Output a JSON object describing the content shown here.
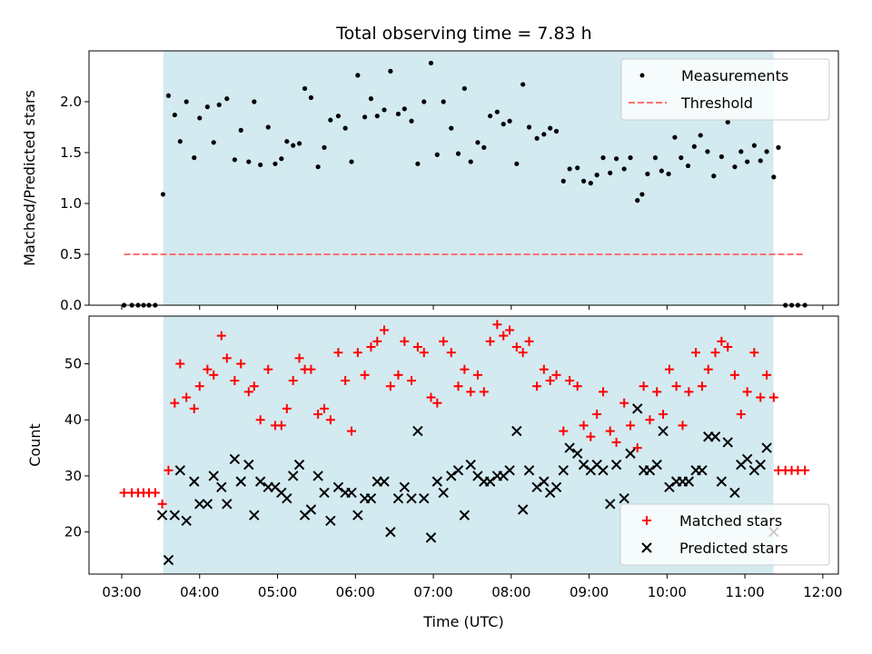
{
  "figure": {
    "title": "Total observing time = 7.83 h",
    "xlabel": "Time (UTC)"
  },
  "chart_data": [
    {
      "type": "scatter",
      "ylabel": "Matched/Predicted stars",
      "xlim": [
        2.58,
        12.2
      ],
      "ylim": [
        0.0,
        2.5
      ],
      "x_tick_labels": [],
      "y_ticks": [
        0.0,
        0.5,
        1.0,
        1.5,
        2.0
      ],
      "y_tick_labels": [
        "0.0",
        "0.5",
        "1.0",
        "1.5",
        "2.0"
      ],
      "observing_window": {
        "start": "03:32",
        "end": "11:22",
        "color": "#d3eaf0"
      },
      "legend": {
        "position": "top-right",
        "entries": [
          "Measurements",
          "Threshold"
        ]
      },
      "series": [
        {
          "name": "Measurements",
          "marker": "dot",
          "color": "#000000",
          "x": [
            3.03,
            3.13,
            3.21,
            3.28,
            3.35,
            3.43,
            3.53,
            3.6,
            3.68,
            3.75,
            3.83,
            3.93,
            4.0,
            4.1,
            4.18,
            4.25,
            4.35,
            4.45,
            4.53,
            4.63,
            4.7,
            4.78,
            4.88,
            4.97,
            5.05,
            5.12,
            5.2,
            5.28,
            5.35,
            5.43,
            5.52,
            5.6,
            5.68,
            5.78,
            5.87,
            5.95,
            6.03,
            6.12,
            6.2,
            6.28,
            6.37,
            6.45,
            6.55,
            6.63,
            6.72,
            6.8,
            6.88,
            6.97,
            7.05,
            7.13,
            7.23,
            7.32,
            7.4,
            7.48,
            7.57,
            7.65,
            7.73,
            7.82,
            7.9,
            7.98,
            8.07,
            8.15,
            8.23,
            8.33,
            8.42,
            8.5,
            8.58,
            8.67,
            8.75,
            8.85,
            8.93,
            9.02,
            9.1,
            9.18,
            9.27,
            9.35,
            9.45,
            9.53,
            9.62,
            9.68,
            9.75,
            9.85,
            9.93,
            10.02,
            10.1,
            10.18,
            10.27,
            10.35,
            10.43,
            10.52,
            10.6,
            10.7,
            10.78,
            10.87,
            10.95,
            11.03,
            11.12,
            11.2,
            11.28,
            11.37,
            11.43,
            11.52,
            11.6,
            11.68,
            11.77
          ],
          "y": [
            0.0,
            0.0,
            0.0,
            0.0,
            0.0,
            0.0,
            1.09,
            2.06,
            1.87,
            1.61,
            2.0,
            1.45,
            1.84,
            1.95,
            1.6,
            1.97,
            2.03,
            1.43,
            1.72,
            1.41,
            2.0,
            1.38,
            1.75,
            1.39,
            1.44,
            1.61,
            1.57,
            1.59,
            2.13,
            2.04,
            1.36,
            1.55,
            1.82,
            1.86,
            1.74,
            1.41,
            2.26,
            1.85,
            2.03,
            1.86,
            1.92,
            2.3,
            1.88,
            1.93,
            1.81,
            1.39,
            2.0,
            2.38,
            1.48,
            2.0,
            1.74,
            1.49,
            2.13,
            1.41,
            1.6,
            1.55,
            1.86,
            1.9,
            1.78,
            1.81,
            1.39,
            2.17,
            1.75,
            1.64,
            1.68,
            1.74,
            1.71,
            1.22,
            1.34,
            1.35,
            1.22,
            1.2,
            1.28,
            1.45,
            1.3,
            1.44,
            1.34,
            1.45,
            1.03,
            1.09,
            1.29,
            1.45,
            1.32,
            1.29,
            1.65,
            1.45,
            1.37,
            1.56,
            1.67,
            1.51,
            1.27,
            1.46,
            1.8,
            1.36,
            1.51,
            1.41,
            1.57,
            1.42,
            1.51,
            1.26,
            1.55,
            0.0,
            0.0,
            0.0,
            0.0
          ]
        },
        {
          "name": "Threshold",
          "marker": "dashed-line",
          "color": "#ff7070",
          "x": [
            3.03,
            11.77
          ],
          "y": [
            0.5,
            0.5
          ]
        }
      ]
    },
    {
      "type": "scatter",
      "ylabel": "Count",
      "xlim": [
        2.58,
        12.2
      ],
      "ylim": [
        12.5,
        58.5
      ],
      "x_ticks": [
        3,
        4,
        5,
        6,
        7,
        8,
        9,
        10,
        11,
        12
      ],
      "x_tick_labels": [
        "03:00",
        "04:00",
        "05:00",
        "06:00",
        "07:00",
        "08:00",
        "09:00",
        "10:00",
        "11:00",
        "12:00"
      ],
      "y_ticks": [
        20,
        30,
        40,
        50
      ],
      "y_tick_labels": [
        "20",
        "30",
        "40",
        "50"
      ],
      "observing_window": {
        "start": "03:32",
        "end": "11:22",
        "color": "#d3eaf0"
      },
      "legend": {
        "position": "bottom-right",
        "entries": [
          "Matched stars",
          "Predicted stars"
        ]
      },
      "series": [
        {
          "name": "Matched stars",
          "marker": "plus",
          "color": "#ff0000",
          "x": [
            3.03,
            3.13,
            3.21,
            3.28,
            3.35,
            3.43,
            3.52,
            3.6,
            3.68,
            3.75,
            3.83,
            3.93,
            4.0,
            4.1,
            4.18,
            4.28,
            4.35,
            4.45,
            4.53,
            4.63,
            4.7,
            4.78,
            4.88,
            4.97,
            5.05,
            5.12,
            5.2,
            5.28,
            5.35,
            5.43,
            5.52,
            5.6,
            5.68,
            5.78,
            5.87,
            5.95,
            6.03,
            6.12,
            6.2,
            6.28,
            6.37,
            6.45,
            6.55,
            6.63,
            6.72,
            6.8,
            6.88,
            6.97,
            7.05,
            7.13,
            7.23,
            7.32,
            7.4,
            7.48,
            7.57,
            7.65,
            7.73,
            7.82,
            7.9,
            7.98,
            8.07,
            8.15,
            8.23,
            8.33,
            8.42,
            8.5,
            8.58,
            8.67,
            8.75,
            8.85,
            8.93,
            9.02,
            9.1,
            9.18,
            9.27,
            9.35,
            9.45,
            9.53,
            9.62,
            9.7,
            9.78,
            9.87,
            9.95,
            10.03,
            10.12,
            10.2,
            10.28,
            10.37,
            10.45,
            10.53,
            10.62,
            10.7,
            10.78,
            10.87,
            10.95,
            11.03,
            11.12,
            11.2,
            11.28,
            11.37,
            11.43,
            11.52,
            11.6,
            11.68,
            11.77
          ],
          "y": [
            27,
            27,
            27,
            27,
            27,
            27,
            25,
            31,
            43,
            50,
            44,
            42,
            46,
            49,
            48,
            55,
            51,
            47,
            50,
            45,
            46,
            40,
            49,
            39,
            39,
            42,
            47,
            51,
            49,
            49,
            41,
            42,
            40,
            52,
            47,
            38,
            52,
            48,
            53,
            54,
            56,
            46,
            48,
            54,
            47,
            53,
            52,
            44,
            43,
            54,
            52,
            46,
            49,
            45,
            48,
            45,
            54,
            57,
            55,
            56,
            53,
            52,
            54,
            46,
            49,
            47,
            48,
            38,
            47,
            46,
            39,
            37,
            41,
            45,
            38,
            36,
            43,
            39,
            35,
            46,
            40,
            45,
            41,
            49,
            46,
            39,
            45,
            52,
            46,
            49,
            52,
            54,
            53,
            48,
            41,
            45,
            52,
            44,
            48,
            44,
            31,
            31,
            31,
            31,
            31
          ]
        },
        {
          "name": "Predicted stars",
          "marker": "x",
          "color": "#000000",
          "x": [
            3.52,
            3.6,
            3.68,
            3.75,
            3.83,
            3.93,
            4.0,
            4.1,
            4.18,
            4.28,
            4.35,
            4.45,
            4.53,
            4.63,
            4.7,
            4.78,
            4.88,
            4.97,
            5.05,
            5.12,
            5.2,
            5.28,
            5.35,
            5.43,
            5.52,
            5.6,
            5.68,
            5.78,
            5.87,
            5.95,
            6.03,
            6.12,
            6.2,
            6.28,
            6.37,
            6.45,
            6.55,
            6.63,
            6.72,
            6.8,
            6.88,
            6.97,
            7.05,
            7.13,
            7.23,
            7.32,
            7.4,
            7.48,
            7.57,
            7.65,
            7.73,
            7.82,
            7.9,
            7.98,
            8.07,
            8.15,
            8.23,
            8.33,
            8.42,
            8.5,
            8.58,
            8.67,
            8.75,
            8.85,
            8.93,
            9.02,
            9.1,
            9.18,
            9.27,
            9.35,
            9.45,
            9.53,
            9.62,
            9.7,
            9.78,
            9.87,
            9.95,
            10.03,
            10.12,
            10.2,
            10.28,
            10.37,
            10.45,
            10.53,
            10.62,
            10.7,
            10.78,
            10.87,
            10.95,
            11.03,
            11.12,
            11.2,
            11.28,
            11.37
          ],
          "y": [
            23,
            15,
            23,
            31,
            22,
            29,
            25,
            25,
            30,
            28,
            25,
            33,
            29,
            32,
            23,
            29,
            28,
            28,
            27,
            26,
            30,
            32,
            23,
            24,
            30,
            27,
            22,
            28,
            27,
            27,
            23,
            26,
            26,
            29,
            29,
            20,
            26,
            28,
            26,
            38,
            26,
            19,
            29,
            27,
            30,
            31,
            23,
            32,
            30,
            29,
            29,
            30,
            30,
            31,
            38,
            24,
            31,
            28,
            29,
            27,
            28,
            31,
            35,
            34,
            32,
            31,
            32,
            31,
            25,
            32,
            26,
            34,
            42,
            31,
            31,
            32,
            38,
            28,
            29,
            29,
            29,
            31,
            31,
            37,
            37,
            29,
            36,
            27,
            32,
            33,
            31,
            32,
            35,
            20
          ]
        }
      ]
    }
  ]
}
